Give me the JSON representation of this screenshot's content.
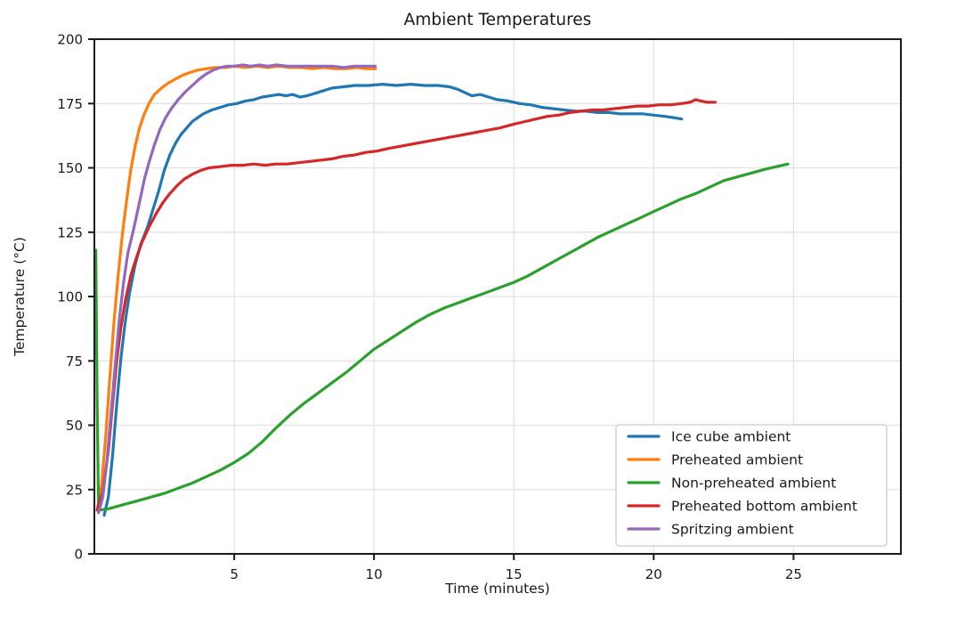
{
  "figure": {
    "title": "Ambient Temperatures"
  },
  "chart_data": {
    "type": "line",
    "title": "Ambient Temperatures",
    "xlabel": "Time (minutes)",
    "ylabel": "Temperature (°C)",
    "xlim": [
      0,
      28.84
    ],
    "ylim": [
      0,
      200
    ],
    "xticks": [
      5,
      10,
      15,
      20,
      25
    ],
    "yticks": [
      0,
      25,
      50,
      75,
      100,
      125,
      150,
      175,
      200
    ],
    "grid": true,
    "grid_color": "#e3e3e3",
    "spine_color": "#1a1a1a",
    "legend_position": "lower right",
    "series": [
      {
        "id": "ice-cube-ambient",
        "name": "Ice cube ambient",
        "color": "#1f77b4",
        "points": [
          [
            0.35,
            15
          ],
          [
            0.5,
            22
          ],
          [
            0.65,
            38
          ],
          [
            0.8,
            58
          ],
          [
            0.95,
            76
          ],
          [
            1.1,
            90
          ],
          [
            1.25,
            101
          ],
          [
            1.45,
            112
          ],
          [
            1.65,
            120
          ],
          [
            1.9,
            127
          ],
          [
            2.1,
            134
          ],
          [
            2.3,
            141
          ],
          [
            2.5,
            149
          ],
          [
            2.7,
            155
          ],
          [
            2.9,
            159.5
          ],
          [
            3.1,
            163
          ],
          [
            3.3,
            165.5
          ],
          [
            3.5,
            168
          ],
          [
            3.7,
            169.5
          ],
          [
            3.9,
            171
          ],
          [
            4.2,
            172.5
          ],
          [
            4.5,
            173.5
          ],
          [
            4.8,
            174.5
          ],
          [
            5.1,
            175
          ],
          [
            5.4,
            176
          ],
          [
            5.7,
            176.5
          ],
          [
            6.0,
            177.5
          ],
          [
            6.3,
            178
          ],
          [
            6.6,
            178.5
          ],
          [
            6.85,
            178
          ],
          [
            7.1,
            178.5
          ],
          [
            7.35,
            177.5
          ],
          [
            7.6,
            178
          ],
          [
            7.9,
            179
          ],
          [
            8.2,
            180
          ],
          [
            8.5,
            181
          ],
          [
            8.9,
            181.5
          ],
          [
            9.3,
            182
          ],
          [
            9.8,
            182
          ],
          [
            10.3,
            182.5
          ],
          [
            10.8,
            182
          ],
          [
            11.3,
            182.5
          ],
          [
            11.8,
            182
          ],
          [
            12.3,
            182
          ],
          [
            12.7,
            181.5
          ],
          [
            13.0,
            180.5
          ],
          [
            13.3,
            179
          ],
          [
            13.5,
            178
          ],
          [
            13.8,
            178.5
          ],
          [
            14.1,
            177.5
          ],
          [
            14.4,
            176.5
          ],
          [
            14.8,
            176
          ],
          [
            15.2,
            175
          ],
          [
            15.6,
            174.5
          ],
          [
            16.0,
            173.5
          ],
          [
            16.4,
            173
          ],
          [
            16.8,
            172.5
          ],
          [
            17.2,
            172
          ],
          [
            17.6,
            172
          ],
          [
            18.0,
            171.5
          ],
          [
            18.4,
            171.5
          ],
          [
            18.8,
            171
          ],
          [
            19.2,
            171
          ],
          [
            19.6,
            171
          ],
          [
            20.0,
            170.5
          ],
          [
            20.4,
            170
          ],
          [
            20.7,
            169.5
          ],
          [
            21.0,
            169
          ]
        ]
      },
      {
        "id": "preheated-ambient",
        "name": "Preheated ambient",
        "color": "#ff7f0e",
        "points": [
          [
            0.1,
            17
          ],
          [
            0.25,
            26
          ],
          [
            0.4,
            45
          ],
          [
            0.55,
            68
          ],
          [
            0.7,
            90
          ],
          [
            0.85,
            108
          ],
          [
            1.0,
            124
          ],
          [
            1.15,
            137
          ],
          [
            1.3,
            149
          ],
          [
            1.45,
            158
          ],
          [
            1.6,
            165
          ],
          [
            1.75,
            170
          ],
          [
            1.95,
            175
          ],
          [
            2.15,
            178.5
          ],
          [
            2.4,
            181
          ],
          [
            2.65,
            183
          ],
          [
            2.9,
            184.5
          ],
          [
            3.15,
            186
          ],
          [
            3.4,
            187
          ],
          [
            3.7,
            188
          ],
          [
            4.0,
            188.5
          ],
          [
            4.3,
            189
          ],
          [
            4.7,
            189
          ],
          [
            5.0,
            189.5
          ],
          [
            5.4,
            189
          ],
          [
            5.8,
            189.5
          ],
          [
            6.2,
            189
          ],
          [
            6.6,
            189.5
          ],
          [
            7.0,
            189
          ],
          [
            7.4,
            189
          ],
          [
            7.8,
            188.5
          ],
          [
            8.2,
            189
          ],
          [
            8.6,
            188.5
          ],
          [
            9.0,
            188.5
          ],
          [
            9.4,
            189
          ],
          [
            9.7,
            188.5
          ],
          [
            10.05,
            188.5
          ]
        ]
      },
      {
        "id": "non-preheated-ambient",
        "name": "Non-preheated ambient",
        "color": "#2ca02c",
        "points": [
          [
            0.05,
            118
          ],
          [
            0.1,
            60
          ],
          [
            0.15,
            17
          ],
          [
            0.5,
            17.5
          ],
          [
            1.0,
            19
          ],
          [
            1.5,
            20.5
          ],
          [
            2.0,
            22
          ],
          [
            2.5,
            23.5
          ],
          [
            3.0,
            25.5
          ],
          [
            3.5,
            27.5
          ],
          [
            4.0,
            30
          ],
          [
            4.5,
            32.5
          ],
          [
            5.0,
            35.5
          ],
          [
            5.5,
            39
          ],
          [
            6.0,
            43.5
          ],
          [
            6.5,
            49
          ],
          [
            7.0,
            54
          ],
          [
            7.5,
            58.5
          ],
          [
            8.0,
            62.5
          ],
          [
            8.5,
            66.5
          ],
          [
            9.0,
            70.5
          ],
          [
            9.5,
            75
          ],
          [
            10.0,
            79.5
          ],
          [
            10.5,
            83
          ],
          [
            11.0,
            86.5
          ],
          [
            11.5,
            90
          ],
          [
            12.0,
            93
          ],
          [
            12.5,
            95.5
          ],
          [
            13.0,
            97.5
          ],
          [
            13.5,
            99.5
          ],
          [
            14.0,
            101.5
          ],
          [
            14.5,
            103.5
          ],
          [
            15.0,
            105.5
          ],
          [
            15.5,
            108
          ],
          [
            16.0,
            111
          ],
          [
            16.5,
            114
          ],
          [
            17.0,
            117
          ],
          [
            17.5,
            120
          ],
          [
            18.0,
            123
          ],
          [
            18.5,
            125.5
          ],
          [
            19.0,
            128
          ],
          [
            19.5,
            130.5
          ],
          [
            20.0,
            133
          ],
          [
            20.5,
            135.5
          ],
          [
            21.0,
            138
          ],
          [
            21.5,
            140
          ],
          [
            22.0,
            142.5
          ],
          [
            22.5,
            145
          ],
          [
            23.0,
            146.5
          ],
          [
            23.5,
            148
          ],
          [
            24.0,
            149.5
          ],
          [
            24.4,
            150.5
          ],
          [
            24.8,
            151.5
          ]
        ]
      },
      {
        "id": "preheated-bottom-ambient",
        "name": "Preheated bottom ambient",
        "color": "#d62728",
        "points": [
          [
            0.1,
            17
          ],
          [
            0.3,
            24
          ],
          [
            0.5,
            40
          ],
          [
            0.65,
            58
          ],
          [
            0.8,
            75
          ],
          [
            0.95,
            88
          ],
          [
            1.1,
            98
          ],
          [
            1.3,
            108
          ],
          [
            1.5,
            115
          ],
          [
            1.7,
            121
          ],
          [
            1.95,
            127
          ],
          [
            2.2,
            132
          ],
          [
            2.45,
            136.5
          ],
          [
            2.7,
            140
          ],
          [
            2.95,
            143
          ],
          [
            3.2,
            145.5
          ],
          [
            3.5,
            147.5
          ],
          [
            3.8,
            149
          ],
          [
            4.1,
            150
          ],
          [
            4.5,
            150.5
          ],
          [
            4.9,
            151
          ],
          [
            5.3,
            151
          ],
          [
            5.7,
            151.5
          ],
          [
            6.1,
            151
          ],
          [
            6.5,
            151.5
          ],
          [
            6.9,
            151.5
          ],
          [
            7.3,
            152
          ],
          [
            7.7,
            152.5
          ],
          [
            8.1,
            153
          ],
          [
            8.5,
            153.5
          ],
          [
            8.9,
            154.5
          ],
          [
            9.3,
            155
          ],
          [
            9.7,
            156
          ],
          [
            10.1,
            156.5
          ],
          [
            10.5,
            157.5
          ],
          [
            11.0,
            158.5
          ],
          [
            11.5,
            159.5
          ],
          [
            12.0,
            160.5
          ],
          [
            12.5,
            161.5
          ],
          [
            13.0,
            162.5
          ],
          [
            13.5,
            163.5
          ],
          [
            14.0,
            164.5
          ],
          [
            14.5,
            165.5
          ],
          [
            15.0,
            167
          ],
          [
            15.4,
            168
          ],
          [
            15.8,
            169
          ],
          [
            16.2,
            170
          ],
          [
            16.6,
            170.5
          ],
          [
            17.0,
            171.5
          ],
          [
            17.4,
            172
          ],
          [
            17.8,
            172.5
          ],
          [
            18.2,
            172.5
          ],
          [
            18.6,
            173
          ],
          [
            19.0,
            173.5
          ],
          [
            19.4,
            174
          ],
          [
            19.8,
            174
          ],
          [
            20.2,
            174.5
          ],
          [
            20.6,
            174.5
          ],
          [
            21.0,
            175
          ],
          [
            21.3,
            175.5
          ],
          [
            21.5,
            176.5
          ],
          [
            21.7,
            176
          ],
          [
            21.9,
            175.5
          ],
          [
            22.2,
            175.5
          ]
        ]
      },
      {
        "id": "spritzing-ambient",
        "name": "Spritzing ambient",
        "color": "#9467bd",
        "points": [
          [
            0.15,
            16
          ],
          [
            0.3,
            22
          ],
          [
            0.45,
            36
          ],
          [
            0.6,
            55
          ],
          [
            0.75,
            74
          ],
          [
            0.9,
            92
          ],
          [
            1.05,
            106
          ],
          [
            1.2,
            117
          ],
          [
            1.4,
            126
          ],
          [
            1.6,
            136
          ],
          [
            1.8,
            146
          ],
          [
            1.95,
            152
          ],
          [
            2.15,
            159
          ],
          [
            2.35,
            165
          ],
          [
            2.55,
            169.5
          ],
          [
            2.75,
            173
          ],
          [
            3.0,
            176.5
          ],
          [
            3.25,
            179.5
          ],
          [
            3.5,
            182
          ],
          [
            3.75,
            184.5
          ],
          [
            4.0,
            186.5
          ],
          [
            4.25,
            188
          ],
          [
            4.5,
            189
          ],
          [
            4.75,
            189.5
          ],
          [
            5.0,
            189.5
          ],
          [
            5.3,
            190
          ],
          [
            5.6,
            189.5
          ],
          [
            5.9,
            190
          ],
          [
            6.2,
            189.5
          ],
          [
            6.5,
            190
          ],
          [
            6.9,
            189.5
          ],
          [
            7.3,
            189.5
          ],
          [
            7.7,
            189.5
          ],
          [
            8.1,
            189.5
          ],
          [
            8.5,
            189.5
          ],
          [
            8.9,
            189
          ],
          [
            9.3,
            189.5
          ],
          [
            9.7,
            189.5
          ],
          [
            10.05,
            189.5
          ]
        ]
      }
    ]
  }
}
